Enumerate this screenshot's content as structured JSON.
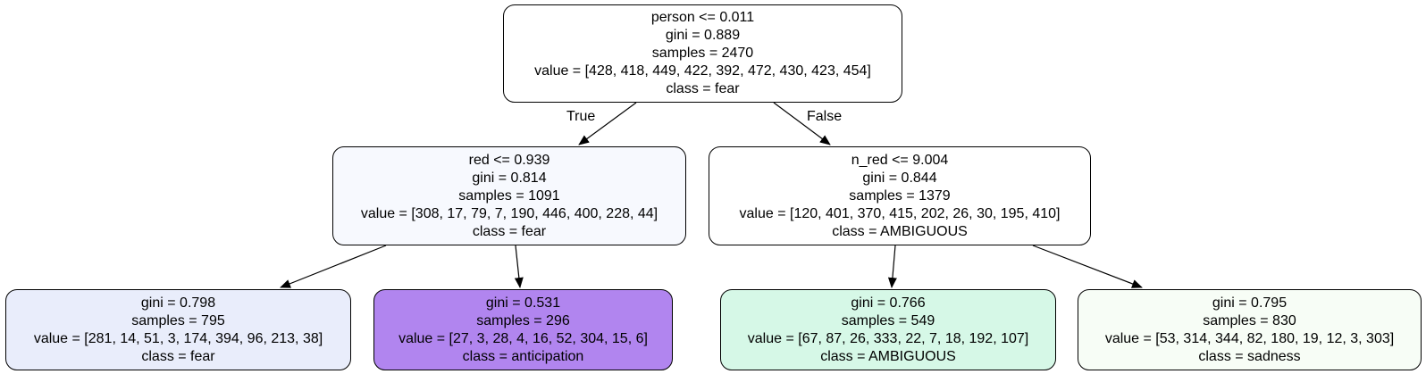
{
  "nodes": [
    {
      "id": "n0",
      "lines": [
        "person <= 0.011",
        "gini = 0.889",
        "samples = 2470",
        "value = [428, 418, 449, 422, 392, 472, 430, 423, 454]",
        "class = fear"
      ],
      "fill": "#ffffff"
    },
    {
      "id": "n1",
      "lines": [
        "red <= 0.939",
        "gini = 0.814",
        "samples = 1091",
        "value = [308, 17, 79, 7, 190, 446, 400, 228, 44]",
        "class = fear"
      ],
      "fill": "#f7f9fe"
    },
    {
      "id": "n2",
      "lines": [
        "n_red <= 9.004",
        "gini = 0.844",
        "samples = 1379",
        "value = [120, 401, 370, 415, 202, 26, 30, 195, 410]",
        "class = AMBIGUOUS"
      ],
      "fill": "#ffffff"
    },
    {
      "id": "n3",
      "lines": [
        "gini = 0.798",
        "samples = 795",
        "value = [281, 14, 51, 3, 174, 394, 96, 213, 38]",
        "class = fear"
      ],
      "fill": "#e9edfb"
    },
    {
      "id": "n4",
      "lines": [
        "gini = 0.531",
        "samples = 296",
        "value = [27, 3, 28, 4, 16, 52, 304, 15, 6]",
        "class = anticipation"
      ],
      "fill": "#b185ef"
    },
    {
      "id": "n5",
      "lines": [
        "gini = 0.766",
        "samples = 549",
        "value = [67, 87, 26, 333, 22, 7, 18, 192, 107]",
        "class = AMBIGUOUS"
      ],
      "fill": "#d6f8e7"
    },
    {
      "id": "n6",
      "lines": [
        "gini = 0.795",
        "samples = 830",
        "value = [53, 314, 344, 82, 180, 19, 12, 3, 303]",
        "class = sadness"
      ],
      "fill": "#f7fdf6"
    }
  ],
  "edges": [
    {
      "from": "n0",
      "to": "n1",
      "label": "True"
    },
    {
      "from": "n0",
      "to": "n2",
      "label": "False"
    },
    {
      "from": "n1",
      "to": "n3",
      "label": ""
    },
    {
      "from": "n1",
      "to": "n4",
      "label": ""
    },
    {
      "from": "n2",
      "to": "n5",
      "label": ""
    },
    {
      "from": "n2",
      "to": "n6",
      "label": ""
    }
  ]
}
